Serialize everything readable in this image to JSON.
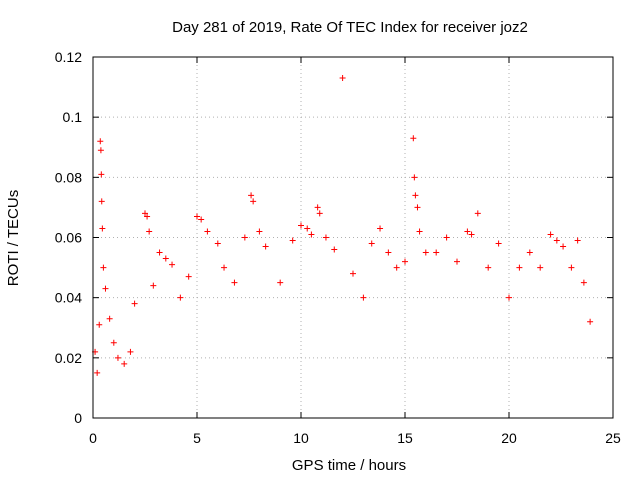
{
  "chart_data": {
    "type": "scatter",
    "title": "Day 281 of 2019, Rate Of TEC Index for receiver joz2",
    "xlabel": "GPS time / hours",
    "ylabel": "ROTI / TECUs",
    "xlim": [
      0,
      25
    ],
    "ylim": [
      0,
      0.12
    ],
    "x_ticks": [
      "0",
      "5",
      "10",
      "15",
      "20",
      "25"
    ],
    "y_ticks": [
      "0",
      "0.02",
      "0.04",
      "0.06",
      "0.08",
      "0.1",
      "0.12"
    ],
    "grid": true,
    "marker": "+",
    "color": "#ff0000",
    "series": [
      {
        "points": [
          [
            0.1,
            0.022
          ],
          [
            0.2,
            0.015
          ],
          [
            0.3,
            0.031
          ],
          [
            0.35,
            0.092
          ],
          [
            0.38,
            0.089
          ],
          [
            0.4,
            0.081
          ],
          [
            0.42,
            0.072
          ],
          [
            0.45,
            0.063
          ],
          [
            0.5,
            0.05
          ],
          [
            0.6,
            0.043
          ],
          [
            0.8,
            0.033
          ],
          [
            1.0,
            0.025
          ],
          [
            1.2,
            0.02
          ],
          [
            1.5,
            0.018
          ],
          [
            1.8,
            0.022
          ],
          [
            2.0,
            0.038
          ],
          [
            2.5,
            0.068
          ],
          [
            2.6,
            0.067
          ],
          [
            2.7,
            0.062
          ],
          [
            2.9,
            0.044
          ],
          [
            3.2,
            0.055
          ],
          [
            3.5,
            0.053
          ],
          [
            3.8,
            0.051
          ],
          [
            4.2,
            0.04
          ],
          [
            4.6,
            0.047
          ],
          [
            5.0,
            0.067
          ],
          [
            5.2,
            0.066
          ],
          [
            5.5,
            0.062
          ],
          [
            6.0,
            0.058
          ],
          [
            6.3,
            0.05
          ],
          [
            6.8,
            0.045
          ],
          [
            7.3,
            0.06
          ],
          [
            7.6,
            0.074
          ],
          [
            7.7,
            0.072
          ],
          [
            8.0,
            0.062
          ],
          [
            8.3,
            0.057
          ],
          [
            9.0,
            0.045
          ],
          [
            9.6,
            0.059
          ],
          [
            10.0,
            0.064
          ],
          [
            10.3,
            0.063
          ],
          [
            10.5,
            0.061
          ],
          [
            10.8,
            0.07
          ],
          [
            10.9,
            0.068
          ],
          [
            11.2,
            0.06
          ],
          [
            11.6,
            0.056
          ],
          [
            12.0,
            0.113
          ],
          [
            12.5,
            0.048
          ],
          [
            13.0,
            0.04
          ],
          [
            13.4,
            0.058
          ],
          [
            13.8,
            0.063
          ],
          [
            14.2,
            0.055
          ],
          [
            14.6,
            0.05
          ],
          [
            15.0,
            0.052
          ],
          [
            15.4,
            0.093
          ],
          [
            15.45,
            0.08
          ],
          [
            15.5,
            0.074
          ],
          [
            15.6,
            0.07
          ],
          [
            15.7,
            0.062
          ],
          [
            16.0,
            0.055
          ],
          [
            16.5,
            0.055
          ],
          [
            17.0,
            0.06
          ],
          [
            17.5,
            0.052
          ],
          [
            18.0,
            0.062
          ],
          [
            18.2,
            0.061
          ],
          [
            18.5,
            0.068
          ],
          [
            19.0,
            0.05
          ],
          [
            19.5,
            0.058
          ],
          [
            20.0,
            0.04
          ],
          [
            20.5,
            0.05
          ],
          [
            21.0,
            0.055
          ],
          [
            21.5,
            0.05
          ],
          [
            22.0,
            0.061
          ],
          [
            22.3,
            0.059
          ],
          [
            22.6,
            0.057
          ],
          [
            23.0,
            0.05
          ],
          [
            23.3,
            0.059
          ],
          [
            23.6,
            0.045
          ],
          [
            23.9,
            0.032
          ]
        ]
      }
    ]
  }
}
